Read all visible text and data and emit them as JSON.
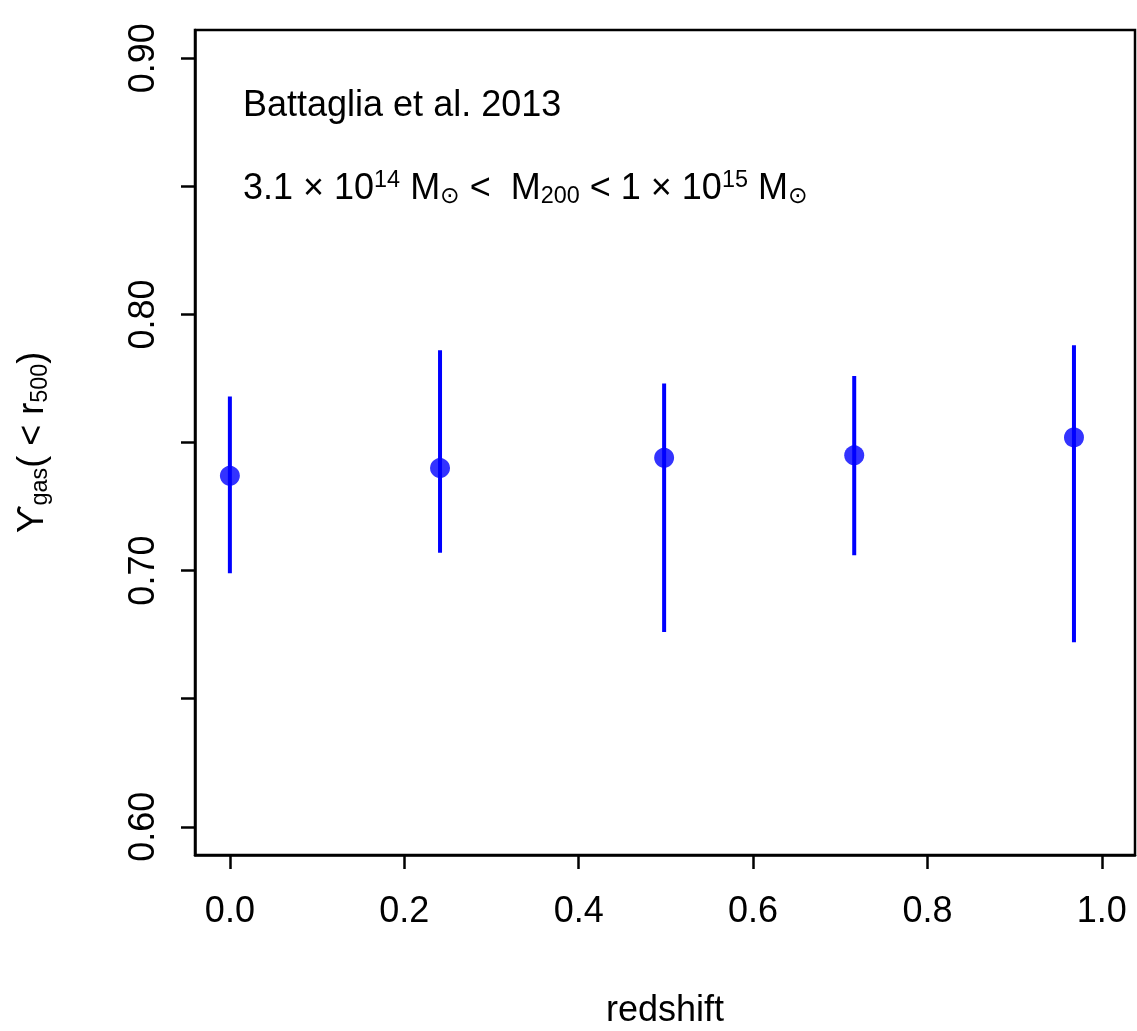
{
  "chart_data": {
    "type": "scatter",
    "xlabel": "redshift",
    "ylabel": "ϒ$_{gas}$( < r$_{500}$)",
    "annotations": [
      "Battaglia et al. 2013",
      "3.1 × 10$^{14}$ M$_{⊙}$ <  M$_{200}$ < 1 × 10$^{15}$ M$_{⊙}$"
    ],
    "x": [
      0.0,
      0.241,
      0.498,
      0.716,
      0.968
    ],
    "series": [
      {
        "color": "#0000ff",
        "values": [
          0.737,
          0.74,
          0.744,
          0.745,
          0.752
        ],
        "errors": [
          [
            0.699,
            0.768
          ],
          [
            0.707,
            0.786
          ],
          [
            0.676,
            0.773
          ],
          [
            0.706,
            0.776
          ],
          [
            0.672,
            0.788
          ]
        ]
      }
    ],
    "xlim": [
      -0.04,
      1.038
    ],
    "xticks": [
      {
        "value": 0,
        "label": "0.0"
      },
      0.2,
      0.4,
      0.6,
      0.8,
      {
        "value": 1,
        "label": "1.0"
      }
    ],
    "ylim": [
      0.589,
      0.911
    ],
    "yticks": [
      {
        "value": 0.6,
        "label": "0.60"
      },
      {
        "value": 0.65,
        "label": null
      },
      {
        "value": 0.7,
        "label": "0.70"
      },
      {
        "value": 0.75,
        "label": null
      },
      {
        "value": 0.8,
        "label": "0.80"
      },
      {
        "value": 0.85,
        "label": null
      },
      {
        "value": 0.9,
        "label": "0.90"
      }
    ],
    "marker": "circle",
    "grid": false
  }
}
